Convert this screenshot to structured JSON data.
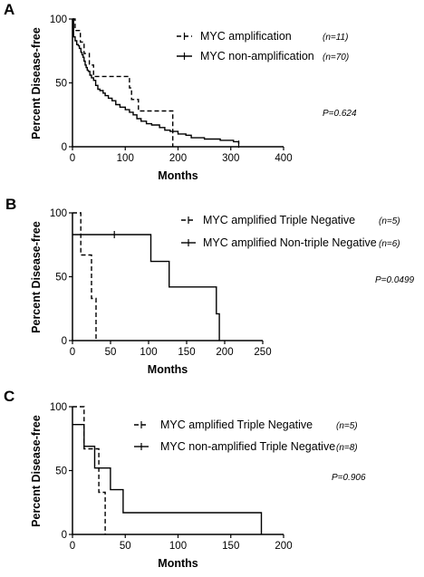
{
  "chart_data": [
    {
      "panel": "A",
      "type": "line",
      "xlabel": "Months",
      "ylabel": "Percent Disease-free",
      "xlim": [
        0,
        400
      ],
      "ylim": [
        0,
        100
      ],
      "xticks": [
        0,
        100,
        200,
        300,
        400
      ],
      "yticks": [
        0,
        50,
        100
      ],
      "p_value": "P=0.624",
      "series": [
        {
          "name": "MYC amplification",
          "n_label": "(n=11)",
          "style": "dashed",
          "steps": [
            [
              0,
              100
            ],
            [
              5,
              91
            ],
            [
              15,
              82
            ],
            [
              22,
              73
            ],
            [
              32,
              64
            ],
            [
              40,
              55
            ],
            [
              100,
              55
            ],
            [
              108,
              46
            ],
            [
              112,
              37
            ],
            [
              125,
              28
            ],
            [
              185,
              28
            ],
            [
              190,
              0
            ]
          ],
          "censor": []
        },
        {
          "name": "MYC non-amplification",
          "n_label": "(n=70)",
          "style": "solid",
          "steps": [
            [
              0,
              100
            ],
            [
              2,
              86
            ],
            [
              5,
              83
            ],
            [
              8,
              80
            ],
            [
              11,
              79
            ],
            [
              13,
              77
            ],
            [
              16,
              74
            ],
            [
              18,
              72
            ],
            [
              20,
              70
            ],
            [
              22,
              67
            ],
            [
              24,
              64
            ],
            [
              26,
              62
            ],
            [
              28,
              60
            ],
            [
              30,
              59
            ],
            [
              33,
              56
            ],
            [
              36,
              54
            ],
            [
              40,
              52
            ],
            [
              44,
              48
            ],
            [
              48,
              45
            ],
            [
              52,
              44
            ],
            [
              58,
              42
            ],
            [
              62,
              40
            ],
            [
              68,
              38
            ],
            [
              75,
              36
            ],
            [
              82,
              33
            ],
            [
              90,
              31
            ],
            [
              100,
              29
            ],
            [
              108,
              27
            ],
            [
              115,
              25
            ],
            [
              122,
              22
            ],
            [
              130,
              20
            ],
            [
              140,
              18
            ],
            [
              150,
              17
            ],
            [
              165,
              15
            ],
            [
              175,
              13
            ],
            [
              185,
              12
            ],
            [
              200,
              10
            ],
            [
              215,
              9
            ],
            [
              225,
              7
            ],
            [
              250,
              6
            ],
            [
              280,
              5
            ],
            [
              305,
              4
            ],
            [
              315,
              2
            ]
          ],
          "censor": [
            [
              315,
              2
            ]
          ]
        }
      ]
    },
    {
      "panel": "B",
      "type": "line",
      "xlabel": "Months",
      "ylabel": "Percent Disease-free",
      "xlim": [
        0,
        250
      ],
      "ylim": [
        0,
        100
      ],
      "xticks": [
        0,
        50,
        100,
        150,
        200,
        250
      ],
      "yticks": [
        0,
        50,
        100
      ],
      "p_value": "P=0.0499",
      "series": [
        {
          "name": "MYC amplified Triple Negative",
          "n_label": "(n=5)",
          "style": "dashed",
          "steps": [
            [
              0,
              100
            ],
            [
              10,
              100
            ],
            [
              11,
              67
            ],
            [
              24,
              67
            ],
            [
              25,
              33
            ],
            [
              30,
              33
            ],
            [
              31,
              0
            ]
          ],
          "censor": []
        },
        {
          "name": "MYC amplified Non-triple Negative",
          "n_label": "(n=6)",
          "style": "solid",
          "steps": [
            [
              0,
              83
            ],
            [
              102,
              83
            ],
            [
              103,
              62
            ],
            [
              126,
              62
            ],
            [
              127,
              42
            ],
            [
              188,
              42
            ],
            [
              189,
              21
            ],
            [
              192,
              21
            ],
            [
              193,
              0
            ]
          ],
          "censor": [
            [
              55,
              83
            ]
          ]
        }
      ]
    },
    {
      "panel": "C",
      "type": "line",
      "xlabel": "Months",
      "ylabel": "Percent Disease-free",
      "xlim": [
        0,
        200
      ],
      "ylim": [
        0,
        100
      ],
      "xticks": [
        0,
        50,
        100,
        150,
        200
      ],
      "yticks": [
        0,
        50,
        100
      ],
      "p_value": "P=0.906",
      "series": [
        {
          "name": "MYC amplified Triple Negative",
          "n_label": "(n=5)",
          "style": "dashed",
          "steps": [
            [
              0,
              100
            ],
            [
              10,
              100
            ],
            [
              11,
              67
            ],
            [
              24,
              67
            ],
            [
              25,
              33
            ],
            [
              30,
              33
            ],
            [
              31,
              0
            ]
          ],
          "censor": []
        },
        {
          "name": "MYC non-amplified Triple Negative",
          "n_label": "(n=8)",
          "style": "solid",
          "steps": [
            [
              0,
              86
            ],
            [
              10,
              86
            ],
            [
              11,
              69
            ],
            [
              20,
              69
            ],
            [
              21,
              52
            ],
            [
              35,
              52
            ],
            [
              36,
              35
            ],
            [
              47,
              35
            ],
            [
              48,
              17
            ],
            [
              178,
              17
            ],
            [
              179,
              0
            ]
          ],
          "censor": []
        }
      ]
    }
  ]
}
